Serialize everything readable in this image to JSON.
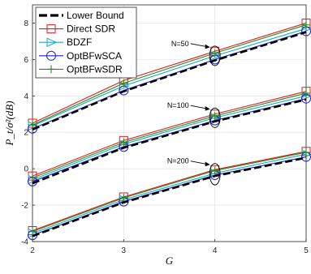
{
  "chart_data": {
    "type": "line",
    "xlabel": "G",
    "ylabel": "P_t/σ²(dB)",
    "xlim": [
      2,
      5
    ],
    "ylim": [
      -4,
      9
    ],
    "xticks": [
      2,
      3,
      4,
      5
    ],
    "yticks": [
      -4,
      -2,
      0,
      2,
      4,
      6,
      8
    ],
    "x": [
      2,
      3,
      4,
      5
    ],
    "grid": true,
    "legend_position": "top-left",
    "series": [
      {
        "name": "Lower Bound",
        "color": "#000000",
        "marker": "none",
        "dash": true,
        "group": "N=50",
        "values": [
          2.15,
          4.25,
          5.95,
          7.5
        ]
      },
      {
        "name": "Direct SDR",
        "color": "#e41a1c",
        "marker": "square",
        "group": "N=50",
        "values": [
          2.5,
          4.85,
          6.45,
          8.0
        ]
      },
      {
        "name": "BDZF",
        "color": "#17a8c4",
        "marker": "triangle-right",
        "group": "N=50",
        "values": [
          2.35,
          4.55,
          6.2,
          7.7
        ]
      },
      {
        "name": "OptBFwSCA",
        "color": "#1f1fd1",
        "marker": "circle",
        "group": "N=50",
        "values": [
          2.2,
          4.3,
          6.0,
          7.55
        ]
      },
      {
        "name": "OptBFwSDR",
        "color": "#228b22",
        "marker": "plus",
        "group": "N=50",
        "values": [
          2.4,
          4.7,
          6.35,
          7.9
        ]
      },
      {
        "name": "Lower Bound",
        "color": "#000000",
        "marker": "none",
        "dash": true,
        "group": "N=100",
        "values": [
          -0.8,
          1.15,
          2.6,
          3.8
        ]
      },
      {
        "name": "Direct SDR",
        "color": "#e41a1c",
        "marker": "square",
        "group": "N=100",
        "values": [
          -0.4,
          1.55,
          3.0,
          4.25
        ]
      },
      {
        "name": "BDZF",
        "color": "#17a8c4",
        "marker": "triangle-right",
        "group": "N=100",
        "values": [
          -0.6,
          1.35,
          2.8,
          4.0
        ]
      },
      {
        "name": "OptBFwSCA",
        "color": "#1f1fd1",
        "marker": "circle",
        "group": "N=100",
        "values": [
          -0.7,
          1.2,
          2.65,
          3.85
        ]
      },
      {
        "name": "OptBFwSDR",
        "color": "#228b22",
        "marker": "plus",
        "group": "N=100",
        "values": [
          -0.5,
          1.45,
          2.9,
          4.15
        ]
      },
      {
        "name": "Lower Bound",
        "color": "#000000",
        "marker": "none",
        "dash": true,
        "group": "N=200",
        "values": [
          -3.7,
          -1.85,
          -0.4,
          0.6
        ]
      },
      {
        "name": "Direct SDR",
        "color": "#e41a1c",
        "marker": "square",
        "group": "N=200",
        "values": [
          -3.4,
          -1.55,
          -0.05,
          0.95
        ]
      },
      {
        "name": "BDZF",
        "color": "#17a8c4",
        "marker": "triangle-right",
        "group": "N=200",
        "values": [
          -3.55,
          -1.7,
          -0.25,
          0.8
        ]
      },
      {
        "name": "OptBFwSCA",
        "color": "#1f1fd1",
        "marker": "circle",
        "group": "N=200",
        "values": [
          -3.65,
          -1.8,
          -0.35,
          0.65
        ]
      },
      {
        "name": "OptBFwSDR",
        "color": "#228b22",
        "marker": "plus",
        "group": "N=200",
        "values": [
          -3.45,
          -1.6,
          -0.1,
          0.9
        ]
      }
    ],
    "legend": [
      "Lower Bound",
      "Direct SDR",
      "BDZF",
      "OptBFwSCA",
      "OptBFwSDR"
    ],
    "annotations": [
      {
        "text": "N=50",
        "x": 4,
        "y_min": 5.75,
        "y_max": 6.65
      },
      {
        "text": "N=100",
        "x": 4,
        "y_min": 2.35,
        "y_max": 3.25
      },
      {
        "text": "N=200",
        "x": 4,
        "y_min": -0.8,
        "y_max": 0.2
      }
    ]
  }
}
